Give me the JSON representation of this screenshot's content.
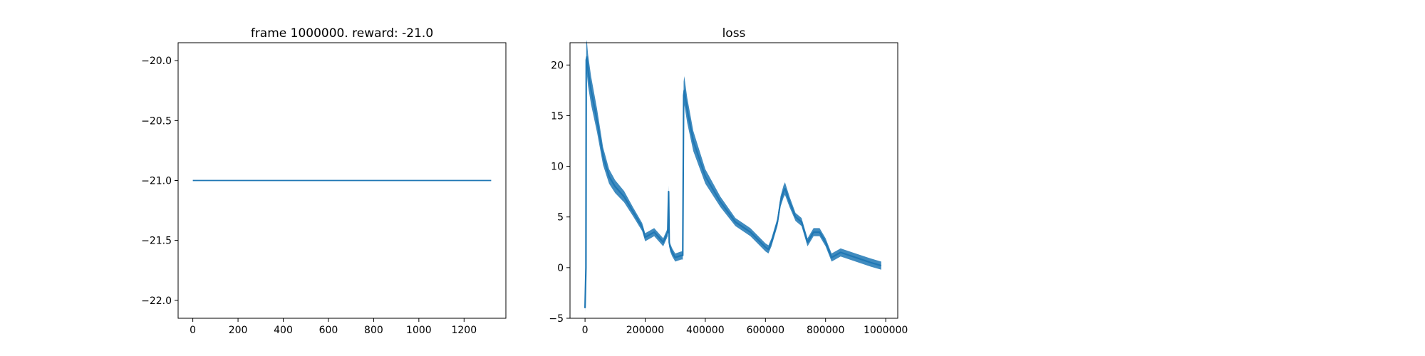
{
  "figure": {
    "background": "#ffffff",
    "line_color": "#1f77b4"
  },
  "chart_data": [
    {
      "type": "line",
      "title": "frame 1000000. reward: -21.0",
      "xlabel": "",
      "ylabel": "",
      "xlim": [
        -65,
        1385
      ],
      "ylim": [
        -22.15,
        -19.85
      ],
      "x_ticks": [
        0,
        200,
        400,
        600,
        800,
        1000,
        1200
      ],
      "x_tick_labels": [
        "0",
        "200",
        "400",
        "600",
        "800",
        "1000",
        "1200"
      ],
      "y_ticks": [
        -20.0,
        -20.5,
        -21.0,
        -21.5,
        -22.0
      ],
      "y_tick_labels": [
        "−20.0",
        "−20.5",
        "−21.0",
        "−21.5",
        "−22.0"
      ],
      "grid": false,
      "legend": "none",
      "series": [
        {
          "x": [
            0,
            1320
          ],
          "y": [
            -21.0,
            -21.0
          ]
        }
      ]
    },
    {
      "type": "line",
      "title": "loss",
      "xlabel": "",
      "ylabel": "",
      "xlim": [
        -50000,
        1040000
      ],
      "ylim": [
        -5.0,
        22.2
      ],
      "x_ticks": [
        0,
        200000,
        400000,
        600000,
        800000,
        1000000
      ],
      "x_tick_labels": [
        "0",
        "200000",
        "400000",
        "600000",
        "800000",
        "1000000"
      ],
      "y_ticks": [
        -5,
        0,
        5,
        10,
        15,
        20
      ],
      "y_tick_labels": [
        "−5",
        "0",
        "5",
        "10",
        "15",
        "20"
      ],
      "grid": false,
      "legend": "none",
      "series": [
        {
          "x": [
            0,
            3000,
            4000,
            6000,
            10000,
            20000,
            40000,
            60000,
            80000,
            100000,
            130000,
            160000,
            190000,
            200000,
            230000,
            260000,
            275000,
            278000,
            280000,
            283000,
            290000,
            300000,
            320000,
            325000,
            328000,
            330000,
            340000,
            360000,
            400000,
            450000,
            500000,
            550000,
            600000,
            610000,
            620000,
            640000,
            650000,
            660000,
            665000,
            680000,
            700000,
            720000,
            740000,
            760000,
            780000,
            800000,
            820000,
            850000,
            900000,
            950000,
            985000
          ],
          "y": [
            -4.0,
            0.0,
            20.5,
            20.8,
            19.5,
            17.5,
            14.5,
            11.0,
            9.0,
            8.0,
            7.0,
            5.5,
            4.0,
            3.0,
            3.5,
            2.5,
            3.5,
            7.5,
            2.5,
            2.0,
            1.5,
            1.0,
            1.2,
            1.2,
            17.0,
            17.5,
            15.5,
            12.5,
            9.0,
            6.5,
            4.5,
            3.5,
            2.0,
            1.8,
            2.5,
            4.5,
            6.5,
            7.5,
            7.8,
            6.5,
            5.0,
            4.5,
            2.5,
            3.5,
            3.5,
            2.5,
            1.0,
            1.5,
            1.0,
            0.5,
            0.2
          ]
        }
      ]
    }
  ]
}
